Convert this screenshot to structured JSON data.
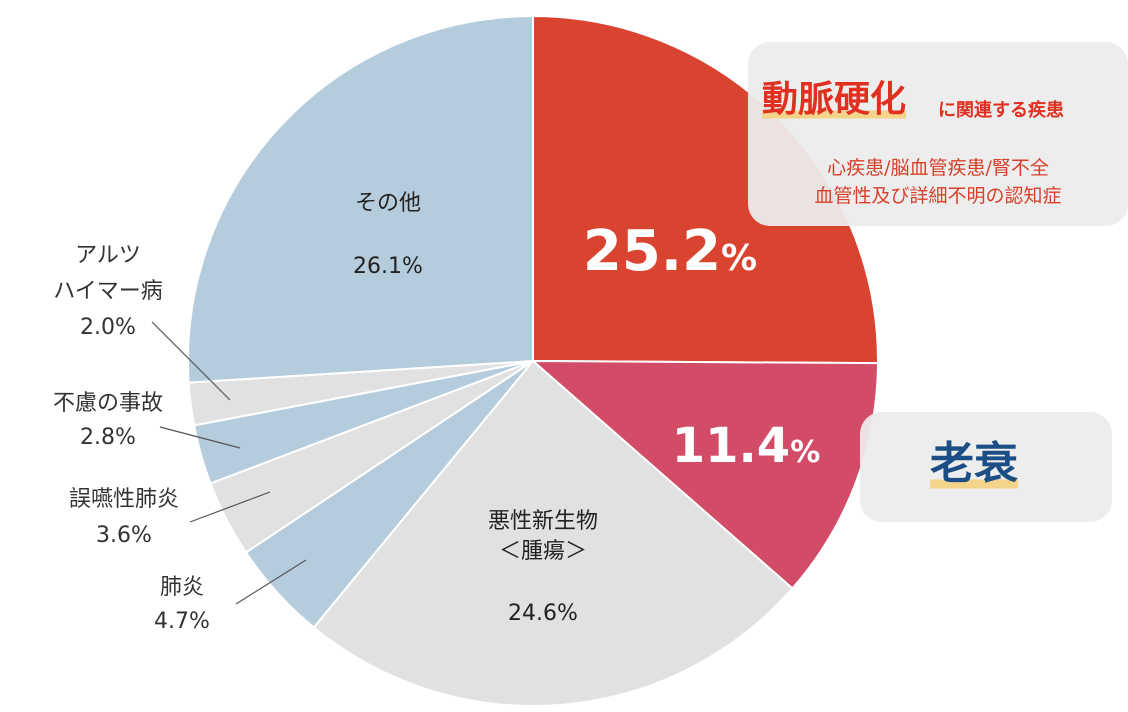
{
  "chart_data": {
    "type": "pie",
    "start": "12 o'clock",
    "direction": "clockwise",
    "slices": [
      {
        "label": "動脈硬化に関連する疾患",
        "value": 25.2,
        "display": "25.2%",
        "color": "#d94430"
      },
      {
        "label": "老衰",
        "value": 11.4,
        "display": "11.4%",
        "color": "#d24b67"
      },
      {
        "label": "悪性新生物＜腫瘍＞",
        "value": 24.6,
        "display": "24.6%",
        "color": "#e1e1e1"
      },
      {
        "label": "肺炎",
        "value": 4.7,
        "display": "4.7%",
        "color": "#b5ccdc"
      },
      {
        "label": "誤嚥性肺炎",
        "value": 3.6,
        "display": "3.6%",
        "color": "#e1e1e1"
      },
      {
        "label": "不慮の事故",
        "value": 2.8,
        "display": "2.8%",
        "color": "#b5ccdc"
      },
      {
        "label": "アルツハイマー病",
        "value": 2.0,
        "display": "2.0%",
        "color": "#e1e1e1"
      },
      {
        "label": "その他",
        "value": 26.1,
        "display": "26.1%",
        "color": "#b5ccdc"
      }
    ]
  },
  "labels": {
    "arterio_pct": {
      "num": "25.2",
      "unit": "%"
    },
    "senility_pct": {
      "num": "11.4",
      "unit": "%"
    },
    "cancer": {
      "line1": "悪性新生物",
      "line2": "＜腫瘍＞",
      "pct": "24.6%"
    },
    "other": {
      "name": "その他",
      "pct": "26.1%"
    },
    "alzheimer": {
      "line1": "アルツ",
      "line2": "ハイマー病",
      "pct": "2.0%"
    },
    "accident": {
      "name": "不慮の事故",
      "pct": "2.8%"
    },
    "aspiration": {
      "name": "誤嚥性肺炎",
      "pct": "3.6%"
    },
    "pneumonia": {
      "name": "肺炎",
      "pct": "4.7%"
    }
  },
  "callouts": {
    "arterio": {
      "title_big": "動脈硬化",
      "title_small": "に関連する疾患",
      "detail_1": "心疾患/脳血管疾患/腎不全",
      "detail_2": "血管性及び詳細不明の認知症"
    },
    "senility": {
      "title": "老衰"
    }
  }
}
